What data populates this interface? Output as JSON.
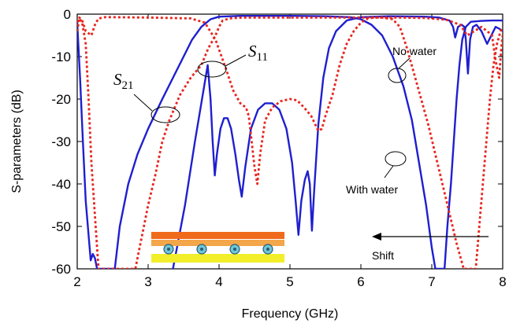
{
  "chart_data": {
    "type": "line",
    "xlabel": "Frequency (GHz)",
    "ylabel": "S-parameters (dB)",
    "xlim": [
      2,
      8
    ],
    "ylim": [
      -60,
      0
    ],
    "x_ticks": [
      "2",
      "3",
      "4",
      "5",
      "6",
      "7",
      "8"
    ],
    "y_ticks": [
      "0",
      "-10",
      "-20",
      "-30",
      "-40",
      "-50",
      "-60"
    ],
    "grid": false,
    "series": [
      {
        "key": "s11_water",
        "style": "solid",
        "color": "#1f1fd0",
        "points": [
          [
            3.35,
            -60
          ],
          [
            3.52,
            -45
          ],
          [
            3.66,
            -30
          ],
          [
            3.76,
            -20
          ],
          [
            3.84,
            -12
          ],
          [
            3.88,
            -20
          ],
          [
            3.91,
            -30
          ],
          [
            3.94,
            -38
          ],
          [
            3.97,
            -33
          ],
          [
            4.02,
            -27
          ],
          [
            4.07,
            -24.5
          ],
          [
            4.12,
            -24.5
          ],
          [
            4.17,
            -27
          ],
          [
            4.23,
            -33
          ],
          [
            4.28,
            -39
          ],
          [
            4.32,
            -43
          ],
          [
            4.37,
            -36
          ],
          [
            4.45,
            -27
          ],
          [
            4.55,
            -22.5
          ],
          [
            4.65,
            -21
          ],
          [
            4.75,
            -21
          ],
          [
            4.85,
            -22.5
          ],
          [
            4.95,
            -27
          ],
          [
            5.03,
            -35
          ],
          [
            5.08,
            -44
          ],
          [
            5.12,
            -52
          ],
          [
            5.16,
            -44
          ],
          [
            5.21,
            -39
          ],
          [
            5.25,
            -37
          ],
          [
            5.28,
            -40
          ],
          [
            5.31,
            -51
          ],
          [
            5.34,
            -42
          ],
          [
            5.4,
            -26
          ],
          [
            5.47,
            -15
          ],
          [
            5.55,
            -8
          ],
          [
            5.65,
            -4
          ],
          [
            5.8,
            -1.5
          ],
          [
            6.0,
            -0.7
          ],
          [
            6.4,
            -0.5
          ],
          [
            6.9,
            -0.6
          ],
          [
            7.1,
            -0.8
          ],
          [
            7.25,
            -1.5
          ],
          [
            7.3,
            -3
          ],
          [
            7.33,
            -5.5
          ],
          [
            7.37,
            -3
          ],
          [
            7.42,
            -2.5
          ],
          [
            7.46,
            -3
          ],
          [
            7.48,
            -6
          ],
          [
            7.51,
            -14
          ],
          [
            7.54,
            -6
          ],
          [
            7.58,
            -3
          ],
          [
            7.63,
            -2.5
          ],
          [
            7.7,
            -4
          ],
          [
            7.78,
            -7
          ],
          [
            7.84,
            -5
          ],
          [
            7.9,
            -3
          ],
          [
            7.96,
            -3.5
          ],
          [
            8.0,
            -4
          ]
        ]
      },
      {
        "key": "s21_water",
        "style": "solid",
        "color": "#1f1fd0",
        "points": [
          [
            2.0,
            -2
          ],
          [
            2.04,
            -15
          ],
          [
            2.08,
            -30
          ],
          [
            2.12,
            -44
          ],
          [
            2.16,
            -52
          ],
          [
            2.19,
            -58
          ],
          [
            2.22,
            -56.5
          ],
          [
            2.25,
            -57.5
          ],
          [
            2.28,
            -60
          ],
          [
            2.53,
            -60
          ],
          [
            2.6,
            -50
          ],
          [
            2.72,
            -40
          ],
          [
            2.85,
            -33
          ],
          [
            3.0,
            -27
          ],
          [
            3.2,
            -20
          ],
          [
            3.35,
            -15
          ],
          [
            3.5,
            -10
          ],
          [
            3.62,
            -6
          ],
          [
            3.75,
            -3
          ],
          [
            3.88,
            -1.2
          ],
          [
            4.0,
            -0.6
          ],
          [
            4.3,
            -0.4
          ],
          [
            5.0,
            -0.4
          ],
          [
            5.5,
            -0.5
          ],
          [
            5.85,
            -0.7
          ],
          [
            6.0,
            -1.2
          ],
          [
            6.15,
            -2.5
          ],
          [
            6.3,
            -5
          ],
          [
            6.45,
            -10
          ],
          [
            6.6,
            -17
          ],
          [
            6.72,
            -25
          ],
          [
            6.82,
            -35
          ],
          [
            6.92,
            -45
          ],
          [
            7.0,
            -55
          ],
          [
            7.05,
            -60
          ],
          [
            7.18,
            -60
          ],
          [
            7.22,
            -50
          ],
          [
            7.27,
            -40
          ],
          [
            7.31,
            -30
          ],
          [
            7.35,
            -20
          ],
          [
            7.39,
            -12
          ],
          [
            7.43,
            -6
          ],
          [
            7.48,
            -3
          ],
          [
            7.55,
            -1.8
          ],
          [
            7.7,
            -1.6
          ],
          [
            7.85,
            -1.5
          ],
          [
            8.0,
            -1.5
          ]
        ]
      },
      {
        "key": "s11_nowater",
        "style": "dotted",
        "color": "#e8251e",
        "points": [
          [
            2.0,
            -2
          ],
          [
            2.03,
            -0.8
          ],
          [
            2.07,
            -1.5
          ],
          [
            2.12,
            -4
          ],
          [
            2.2,
            -5
          ],
          [
            2.25,
            -2.5
          ],
          [
            2.3,
            -1
          ],
          [
            2.4,
            -0.7
          ],
          [
            3.0,
            -0.8
          ],
          [
            3.6,
            -1
          ],
          [
            3.8,
            -2
          ],
          [
            3.95,
            -6
          ],
          [
            4.1,
            -13
          ],
          [
            4.2,
            -18
          ],
          [
            4.3,
            -21
          ],
          [
            4.38,
            -22
          ],
          [
            4.42,
            -24
          ],
          [
            4.46,
            -30
          ],
          [
            4.5,
            -36
          ],
          [
            4.54,
            -40
          ],
          [
            4.58,
            -33
          ],
          [
            4.65,
            -25
          ],
          [
            4.75,
            -22
          ],
          [
            4.87,
            -20.5
          ],
          [
            5.0,
            -20
          ],
          [
            5.1,
            -20.3
          ],
          [
            5.2,
            -22
          ],
          [
            5.3,
            -24
          ],
          [
            5.4,
            -27.5
          ],
          [
            5.45,
            -27
          ],
          [
            5.5,
            -24
          ],
          [
            5.6,
            -19
          ],
          [
            5.7,
            -12
          ],
          [
            5.8,
            -7
          ],
          [
            5.9,
            -4
          ],
          [
            6.0,
            -2
          ],
          [
            6.1,
            -1
          ],
          [
            6.2,
            -0.8
          ],
          [
            6.5,
            -0.8
          ],
          [
            6.9,
            -0.9
          ],
          [
            7.2,
            -1.3
          ],
          [
            7.4,
            -2.5
          ],
          [
            7.5,
            -5
          ],
          [
            7.6,
            -4
          ],
          [
            7.7,
            -3
          ],
          [
            7.78,
            -4
          ],
          [
            7.85,
            -5
          ],
          [
            7.9,
            -11
          ],
          [
            7.95,
            -15
          ],
          [
            7.98,
            -8
          ],
          [
            8.0,
            -5
          ]
        ]
      },
      {
        "key": "s21_nowater",
        "style": "dotted",
        "color": "#e8251e",
        "points": [
          [
            2.0,
            -4
          ],
          [
            2.03,
            -1
          ],
          [
            2.07,
            -2
          ],
          [
            2.12,
            -7
          ],
          [
            2.16,
            -20
          ],
          [
            2.2,
            -35
          ],
          [
            2.26,
            -50
          ],
          [
            2.3,
            -60
          ],
          [
            2.82,
            -60
          ],
          [
            2.88,
            -55
          ],
          [
            3.0,
            -45
          ],
          [
            3.1,
            -38
          ],
          [
            3.2,
            -30
          ],
          [
            3.3,
            -25
          ],
          [
            3.45,
            -19
          ],
          [
            3.6,
            -15
          ],
          [
            3.75,
            -12
          ],
          [
            3.85,
            -8
          ],
          [
            3.95,
            -5
          ],
          [
            4.0,
            -3
          ],
          [
            4.05,
            -1.5
          ],
          [
            4.15,
            -1
          ],
          [
            4.35,
            -0.8
          ],
          [
            6.3,
            -0.8
          ],
          [
            6.45,
            -1.2
          ],
          [
            6.55,
            -3
          ],
          [
            6.65,
            -8
          ],
          [
            6.75,
            -14
          ],
          [
            6.85,
            -20
          ],
          [
            6.95,
            -26
          ],
          [
            7.05,
            -33
          ],
          [
            7.15,
            -40
          ],
          [
            7.25,
            -47
          ],
          [
            7.35,
            -54
          ],
          [
            7.45,
            -60
          ],
          [
            7.62,
            -60
          ],
          [
            7.67,
            -50
          ],
          [
            7.72,
            -40
          ],
          [
            7.77,
            -30
          ],
          [
            7.82,
            -20
          ],
          [
            7.87,
            -12
          ],
          [
            7.92,
            -7
          ],
          [
            7.97,
            -4
          ],
          [
            8.0,
            -3
          ]
        ]
      }
    ],
    "annotations": {
      "s11_label": "S",
      "s11_sub": "11",
      "s21_label": "S",
      "s21_sub": "21",
      "no_water": "No water",
      "with_water": "With water",
      "shift": "Shift"
    }
  }
}
